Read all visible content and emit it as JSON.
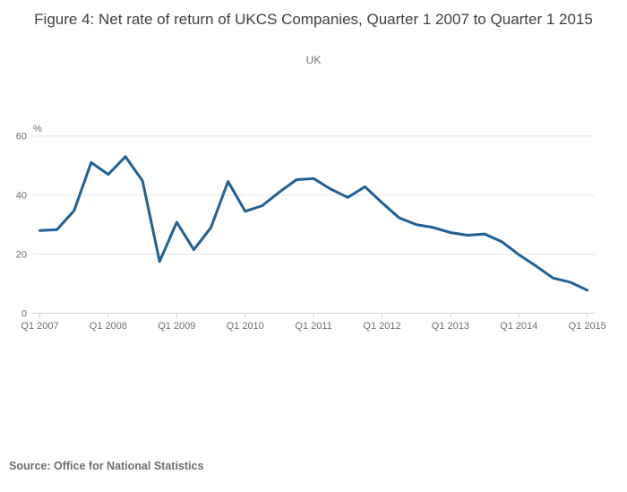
{
  "header": {
    "title": "Figure 4: Net rate of return of UKCS Companies, Quarter 1 2007 to Quarter 1 2015",
    "subtitle": "UK"
  },
  "footer": {
    "source": "Source: Office for National Statistics"
  },
  "colors": {
    "line": "#206095",
    "grid": "#e6e6e6",
    "axis": "#c7d1e0",
    "tick_text": "#6e6e6e",
    "title_text": "#3f3f3f"
  },
  "chart_data": {
    "type": "line",
    "title": "Figure 4: Net rate of return of UKCS Companies, Quarter 1 2007 to Quarter 1 2015",
    "subtitle": "UK",
    "ylabel": "%",
    "xlabel": "",
    "grid": true,
    "legend": "none",
    "ylim": [
      0,
      60
    ],
    "yticks": [
      0,
      20,
      40,
      60
    ],
    "x": [
      "Q1 2007",
      "Q2 2007",
      "Q3 2007",
      "Q4 2007",
      "Q1 2008",
      "Q2 2008",
      "Q3 2008",
      "Q4 2008",
      "Q1 2009",
      "Q2 2009",
      "Q3 2009",
      "Q4 2009",
      "Q1 2010",
      "Q2 2010",
      "Q3 2010",
      "Q4 2010",
      "Q1 2011",
      "Q2 2011",
      "Q3 2011",
      "Q4 2011",
      "Q1 2012",
      "Q2 2012",
      "Q3 2012",
      "Q4 2012",
      "Q1 2013",
      "Q2 2013",
      "Q3 2013",
      "Q4 2013",
      "Q1 2014",
      "Q2 2014",
      "Q3 2014",
      "Q4 2014",
      "Q1 2015"
    ],
    "x_ticklabels": [
      "Q1 2007",
      "Q1 2008",
      "Q1 2009",
      "Q1 2010",
      "Q1 2011",
      "Q1 2012",
      "Q1 2013",
      "Q1 2014",
      "Q1 2015"
    ],
    "values": [
      28.0,
      28.3,
      34.7,
      51.0,
      47.0,
      53.0,
      44.8,
      17.5,
      30.8,
      21.5,
      29.0,
      44.6,
      34.5,
      36.4,
      41.0,
      45.2,
      45.6,
      42.0,
      39.2,
      42.8,
      37.4,
      32.3,
      30.0,
      29.0,
      27.3,
      26.4,
      26.8,
      24.2,
      19.8,
      16.0,
      11.9,
      10.5,
      7.8
    ],
    "line_color": "#206095",
    "grid_color": "#e6e6e6",
    "axis_color": "#c7d1e0"
  }
}
